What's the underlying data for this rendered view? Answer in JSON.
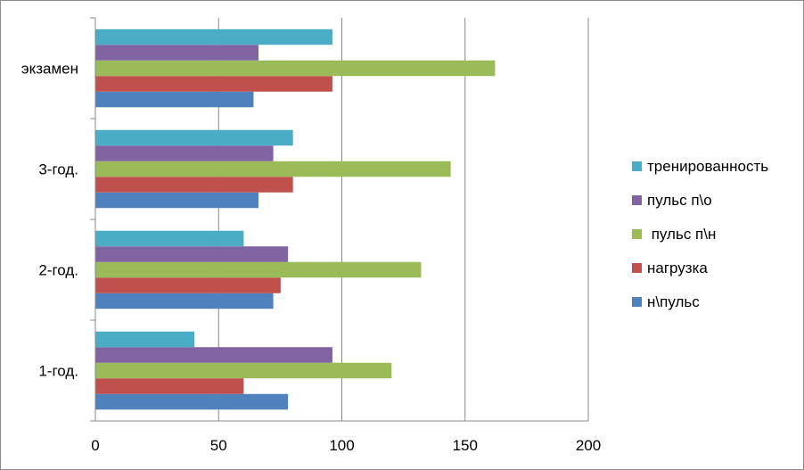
{
  "chart_data": {
    "type": "bar",
    "orientation": "horizontal",
    "categories": [
      "1-год.",
      "2-год.",
      "3-год.",
      "экзамен"
    ],
    "series": [
      {
        "name": "н\\пульс",
        "color": "#4F81BD",
        "values": [
          78,
          72,
          66,
          64
        ]
      },
      {
        "name": "нагрузка",
        "color": "#C0504D",
        "values": [
          60,
          75,
          80,
          96
        ]
      },
      {
        "name": " пульс п\\н",
        "color": "#9BBB59",
        "values": [
          120,
          132,
          144,
          162
        ]
      },
      {
        "name": "пульс п\\о",
        "color": "#8064A2",
        "values": [
          96,
          78,
          72,
          66
        ]
      },
      {
        "name": "тренированность",
        "color": "#4BACC6",
        "values": [
          40,
          60,
          80,
          96
        ]
      }
    ],
    "xlim": [
      0,
      200
    ],
    "xticks": [
      0,
      50,
      100,
      150,
      200
    ],
    "xlabel": "",
    "ylabel": "",
    "title": "",
    "grid": "vertical major gridlines",
    "legend_position": "right",
    "legend_order": [
      "тренированность",
      "пульс п\\о",
      " пульс п\\н",
      "нагрузка",
      "н\\пульс"
    ]
  }
}
